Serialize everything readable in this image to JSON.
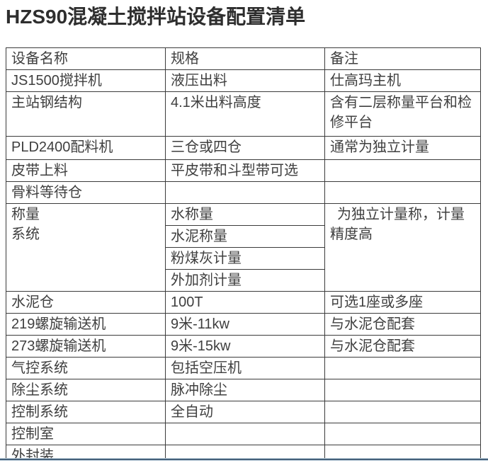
{
  "page_title": "HZS90混凝土搅拌站设备配置清单",
  "table": {
    "headers": {
      "name": "设备名称",
      "spec": "规格",
      "note": "备注"
    },
    "rows": [
      {
        "name": "JS1500搅拌机",
        "spec": "液压出料",
        "note": "仕高玛主机"
      },
      {
        "name": "主站钢结构",
        "spec": "4.1米出料高度",
        "note": "含有二层称量平台和检修平台"
      },
      {
        "name": "PLD2400配料机",
        "spec": "三仓或四仓",
        "note": "通常为独立计量"
      },
      {
        "name": "皮带上料",
        "spec": "平皮带和斗型带可选",
        "note": ""
      },
      {
        "name": "骨料等待仓",
        "spec": "",
        "note": ""
      }
    ],
    "weighing_system": {
      "name": "称量\n系统",
      "specs": [
        "水称量",
        "水泥称量",
        "粉煤灰计量",
        "外加剂计量"
      ],
      "note": "为独立计量称，计量精度高"
    },
    "rows2": [
      {
        "name": "水泥仓",
        "spec": "100T",
        "note": "可选1座或多座"
      },
      {
        "name": "219螺旋输送机",
        "spec": "9米-11kw",
        "note": "与水泥仓配套"
      },
      {
        "name": "273螺旋输送机",
        "spec": "9米-15kw",
        "note": "与水泥仓配套"
      },
      {
        "name": "气控系统",
        "spec": "包括空压机",
        "note": ""
      },
      {
        "name": "除尘系统",
        "spec": "脉冲除尘",
        "note": ""
      },
      {
        "name": "控制系统",
        "spec": "全自动",
        "note": ""
      },
      {
        "name": "控制室",
        "spec": "",
        "note": ""
      },
      {
        "name": "外封装",
        "spec": "",
        "note": ""
      }
    ]
  },
  "colors": {
    "table_border": "#3b3b3b",
    "text": "#3f3f3f",
    "title_text": "#2e2e2e",
    "bottom_divider_dark": "#45617a",
    "bottom_divider_light": "#b7c9d6"
  }
}
